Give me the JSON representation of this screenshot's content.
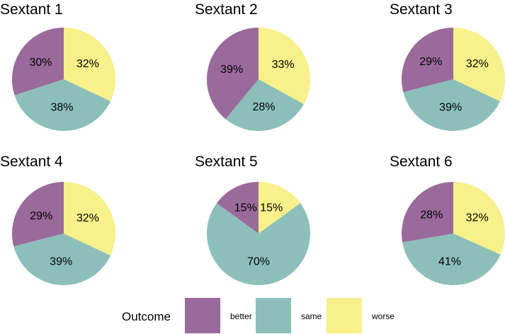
{
  "chart_data": {
    "type": "pie",
    "legend": {
      "title": "Outcome",
      "position": "bottom",
      "entries": [
        {
          "key": "better",
          "label": "better",
          "color": "#9b6a9c"
        },
        {
          "key": "same",
          "label": "same",
          "color": "#8cbfba"
        },
        {
          "key": "worse",
          "label": "worse",
          "color": "#f8f08a"
        }
      ]
    },
    "panels": [
      {
        "title": "Sextant 1",
        "slices": [
          {
            "category": "worse",
            "value": 32,
            "label": "32%"
          },
          {
            "category": "same",
            "value": 38,
            "label": "38%"
          },
          {
            "category": "better",
            "value": 30,
            "label": "30%"
          }
        ]
      },
      {
        "title": "Sextant 2",
        "slices": [
          {
            "category": "worse",
            "value": 33,
            "label": "33%"
          },
          {
            "category": "same",
            "value": 28,
            "label": "28%"
          },
          {
            "category": "better",
            "value": 39,
            "label": "39%"
          }
        ]
      },
      {
        "title": "Sextant 3",
        "slices": [
          {
            "category": "worse",
            "value": 32,
            "label": "32%"
          },
          {
            "category": "same",
            "value": 39,
            "label": "39%"
          },
          {
            "category": "better",
            "value": 29,
            "label": "29%"
          }
        ]
      },
      {
        "title": "Sextant 4",
        "slices": [
          {
            "category": "worse",
            "value": 32,
            "label": "32%"
          },
          {
            "category": "same",
            "value": 39,
            "label": "39%"
          },
          {
            "category": "better",
            "value": 29,
            "label": "29%"
          }
        ]
      },
      {
        "title": "Sextant 5",
        "slices": [
          {
            "category": "worse",
            "value": 15,
            "label": "15%"
          },
          {
            "category": "same",
            "value": 70,
            "label": "70%"
          },
          {
            "category": "better",
            "value": 15,
            "label": "15%"
          }
        ]
      },
      {
        "title": "Sextant 6",
        "slices": [
          {
            "category": "worse",
            "value": 32,
            "label": "32%"
          },
          {
            "category": "same",
            "value": 41,
            "label": "41%"
          },
          {
            "category": "better",
            "value": 28,
            "label": "28%"
          }
        ]
      }
    ]
  }
}
